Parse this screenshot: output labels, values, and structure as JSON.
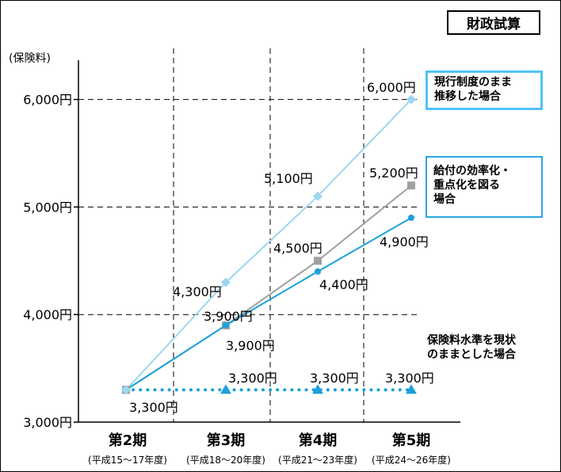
{
  "title": "財政試算",
  "chart_data": {
    "type": "line",
    "ylabel": "(保険料)",
    "ylim": [
      3000,
      6500
    ],
    "y_ticks": [
      "3,000円",
      "4,000円",
      "5,000円",
      "6,000円"
    ],
    "categories": [
      "第2期",
      "第3期",
      "第4期",
      "第5期"
    ],
    "category_subs": [
      "(平成15～17年度)",
      "(平成18～20年度)",
      "(平成21～23年度)",
      "(平成24～26年度)"
    ],
    "series": [
      {
        "name": "現行制度のまま推移した場合",
        "label_lines": [
          "現行制度のまま",
          "推移した場合"
        ],
        "color": "#9ed6f0",
        "marker": "diamond",
        "values": [
          3300,
          4300,
          5100,
          6000
        ],
        "labels": [
          "",
          "4,300円",
          "5,100円",
          "6,000円"
        ]
      },
      {
        "name": "給付の効率化・重点化を図る場合",
        "label_lines": [
          "給付の効率化・",
          "重点化を図る",
          "場合"
        ],
        "color": "#a0a0a0",
        "marker": "square",
        "values": [
          3300,
          3900,
          4500,
          5200
        ],
        "labels": [
          "",
          "3,900円",
          "4,500円",
          "5,200円"
        ]
      },
      {
        "name": "給付の効率化・重点化を図る場合",
        "label_lines": [],
        "color": "#1ba1db",
        "marker": "circle",
        "values": [
          3300,
          3900,
          4400,
          4900
        ],
        "labels": [
          "3,300円",
          "3,900円",
          "4,400円",
          "4,900円"
        ]
      },
      {
        "name": "保険料水準を現状のままとした場合",
        "label_lines": [
          "保険料水準を現状",
          "のままとした場合"
        ],
        "color": "#1ba1db",
        "marker": "triangle",
        "dotted": true,
        "values": [
          3300,
          3300,
          3300,
          3300
        ],
        "labels": [
          "",
          "3,300円",
          "3,300円",
          "3,300円"
        ]
      }
    ]
  }
}
